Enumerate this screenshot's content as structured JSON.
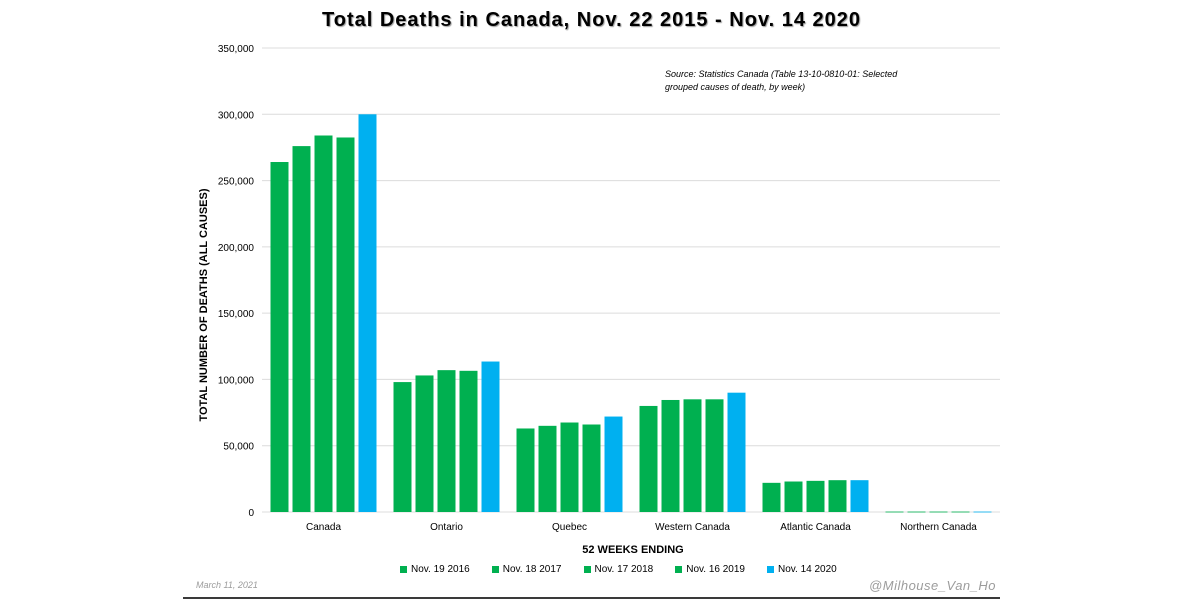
{
  "chart_data": {
    "type": "bar",
    "title": "Total Deaths in Canada, Nov. 22 2015 - Nov. 14 2020",
    "annotation": "Source: Statistics Canada (Table 13-10-0810-01: Selected grouped causes of death, by week)",
    "xlabel": "52 WEEKS ENDING",
    "ylabel": "TOTAL NUMBER OF DEATHS (ALL CAUSES)",
    "ylim": [
      0,
      350000
    ],
    "yticks": [
      0,
      50000,
      100000,
      150000,
      200000,
      250000,
      300000,
      350000
    ],
    "ytick_labels": [
      "0",
      "50,000",
      "100,000",
      "150,000",
      "200,000",
      "250,000",
      "300,000",
      "350,000"
    ],
    "grid": true,
    "legend_position": "bottom",
    "categories": [
      "Canada",
      "Ontario",
      "Quebec",
      "Western Canada",
      "Atlantic Canada",
      "Northern Canada"
    ],
    "series": [
      {
        "name": "Nov. 19 2016",
        "color": "#00b050",
        "values": [
          264000,
          98000,
          63000,
          80000,
          22000,
          300
        ]
      },
      {
        "name": "Nov. 18 2017",
        "color": "#00b050",
        "values": [
          276000,
          103000,
          65000,
          84500,
          23000,
          300
        ]
      },
      {
        "name": "Nov. 17 2018",
        "color": "#00b050",
        "values": [
          284000,
          107000,
          67500,
          85000,
          23500,
          300
        ]
      },
      {
        "name": "Nov. 16 2019",
        "color": "#00b050",
        "values": [
          282500,
          106500,
          66000,
          85000,
          24000,
          300
        ]
      },
      {
        "name": "Nov. 14 2020",
        "color": "#00b0f0",
        "values": [
          300000,
          113500,
          72000,
          90000,
          24000,
          300
        ]
      }
    ]
  },
  "footer": {
    "date": "March 11, 2021",
    "handle": "@Milhouse_Van_Ho"
  }
}
